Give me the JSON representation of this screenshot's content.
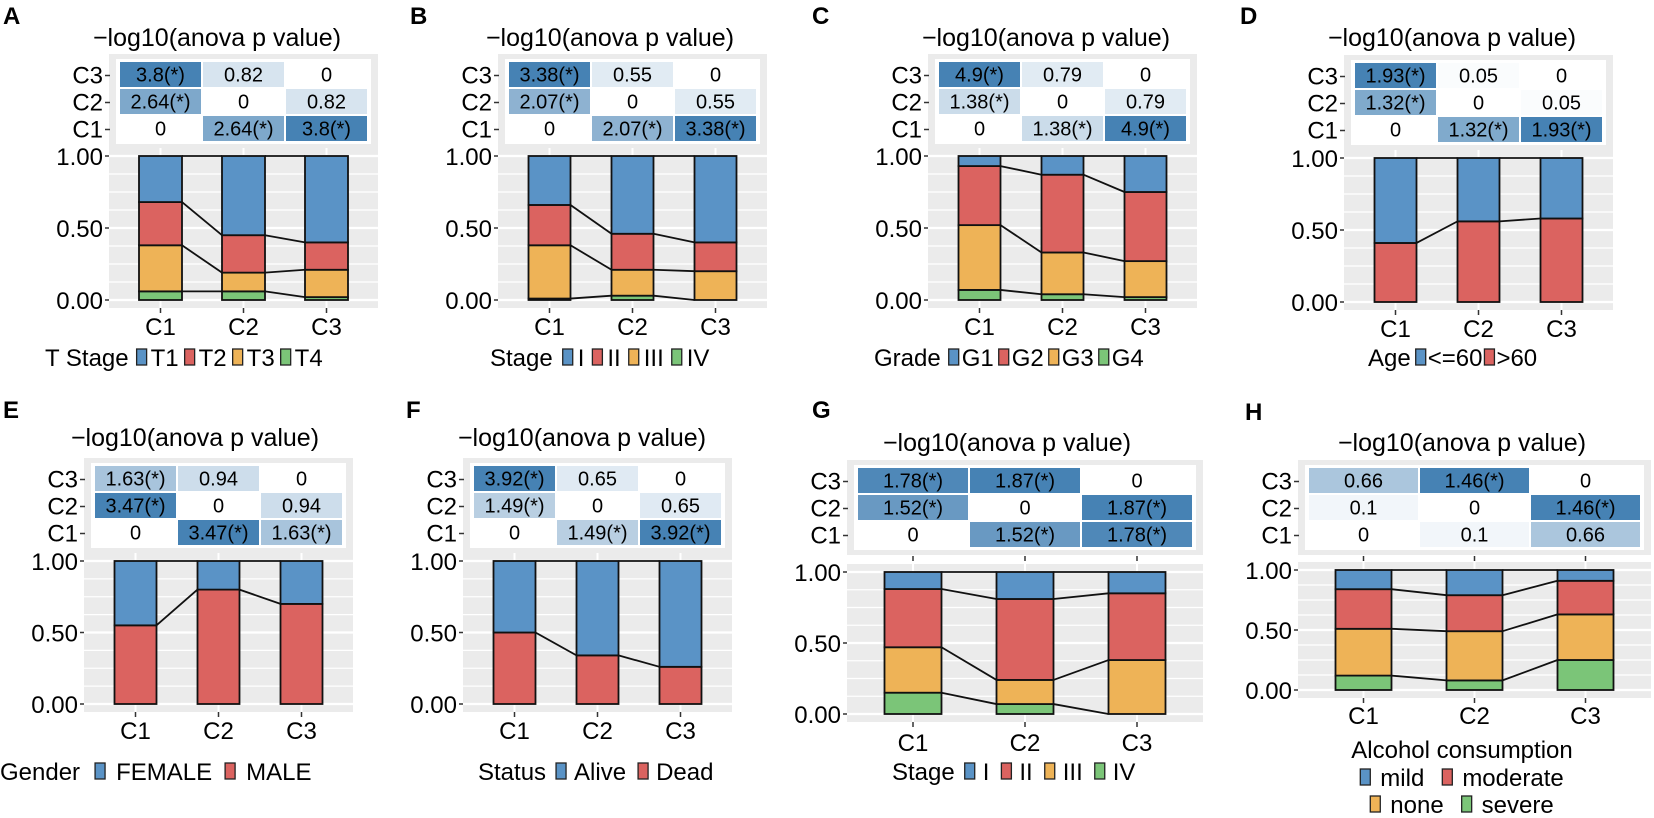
{
  "colors": {
    "heat_low": "#ffffff",
    "heat_high": "#4682b4",
    "panel_bg": "#ebebeb",
    "blue": "#5a93c6",
    "red": "#db6360",
    "orange": "#eeb357",
    "green": "#7bc578"
  },
  "chart_data": [
    {
      "panel": "A",
      "type": "bar",
      "stacked": true,
      "title": "−log10(anova p value)",
      "categories": [
        "C1",
        "C2",
        "C3"
      ],
      "yticks": [
        "0.00",
        "0.50",
        "1.00"
      ],
      "ylim": [
        0,
        1
      ],
      "legend_title": "T Stage",
      "series": [
        {
          "name": "T1",
          "color": "#5a93c6",
          "values": [
            0.32,
            0.55,
            0.6
          ]
        },
        {
          "name": "T2",
          "color": "#db6360",
          "values": [
            0.3,
            0.26,
            0.19
          ]
        },
        {
          "name": "T3",
          "color": "#eeb357",
          "values": [
            0.32,
            0.13,
            0.19
          ]
        },
        {
          "name": "T4",
          "color": "#7bc578",
          "values": [
            0.06,
            0.06,
            0.02
          ]
        }
      ],
      "heatmap": {
        "rows": [
          "C3",
          "C2",
          "C1"
        ],
        "cols": [
          "C1",
          "C2",
          "C3"
        ],
        "cells": [
          [
            "3.8(*)",
            "0.82",
            "0"
          ],
          [
            "2.64(*)",
            "0",
            "0.82"
          ],
          [
            "0",
            "2.64(*)",
            "3.8(*)"
          ]
        ]
      }
    },
    {
      "panel": "B",
      "type": "bar",
      "stacked": true,
      "title": "−log10(anova p value)",
      "categories": [
        "C1",
        "C2",
        "C3"
      ],
      "yticks": [
        "0.00",
        "0.50",
        "1.00"
      ],
      "ylim": [
        0,
        1
      ],
      "legend_title": "Stage",
      "series": [
        {
          "name": "I",
          "color": "#5a93c6",
          "values": [
            0.34,
            0.54,
            0.6
          ]
        },
        {
          "name": "II",
          "color": "#db6360",
          "values": [
            0.28,
            0.25,
            0.2
          ]
        },
        {
          "name": "III",
          "color": "#eeb357",
          "values": [
            0.37,
            0.18,
            0.2
          ]
        },
        {
          "name": "IV",
          "color": "#7bc578",
          "values": [
            0.01,
            0.03,
            0.0
          ]
        }
      ],
      "heatmap": {
        "rows": [
          "C3",
          "C2",
          "C1"
        ],
        "cols": [
          "C1",
          "C2",
          "C3"
        ],
        "cells": [
          [
            "3.38(*)",
            "0.55",
            "0"
          ],
          [
            "2.07(*)",
            "0",
            "0.55"
          ],
          [
            "0",
            "2.07(*)",
            "3.38(*)"
          ]
        ]
      }
    },
    {
      "panel": "C",
      "type": "bar",
      "stacked": true,
      "title": "−log10(anova p value)",
      "categories": [
        "C1",
        "C2",
        "C3"
      ],
      "yticks": [
        "0.00",
        "0.50",
        "1.00"
      ],
      "ylim": [
        0,
        1
      ],
      "legend_title": "Grade",
      "series": [
        {
          "name": "G1",
          "color": "#5a93c6",
          "values": [
            0.07,
            0.13,
            0.25
          ]
        },
        {
          "name": "G2",
          "color": "#db6360",
          "values": [
            0.41,
            0.54,
            0.48
          ]
        },
        {
          "name": "G3",
          "color": "#eeb357",
          "values": [
            0.45,
            0.29,
            0.25
          ]
        },
        {
          "name": "G4",
          "color": "#7bc578",
          "values": [
            0.07,
            0.04,
            0.02
          ]
        }
      ],
      "heatmap": {
        "rows": [
          "C3",
          "C2",
          "C1"
        ],
        "cols": [
          "C1",
          "C2",
          "C3"
        ],
        "cells": [
          [
            "4.9(*)",
            "0.79",
            "0"
          ],
          [
            "1.38(*)",
            "0",
            "0.79"
          ],
          [
            "0",
            "1.38(*)",
            "4.9(*)"
          ]
        ]
      }
    },
    {
      "panel": "D",
      "type": "bar",
      "stacked": true,
      "title": "−log10(anova p value)",
      "categories": [
        "C1",
        "C2",
        "C3"
      ],
      "yticks": [
        "0.00",
        "0.50",
        "1.00"
      ],
      "ylim": [
        0,
        1
      ],
      "legend_title": "Age",
      "series": [
        {
          "name": "<=60",
          "color": "#5a93c6",
          "values": [
            0.59,
            0.44,
            0.42
          ]
        },
        {
          "name": ">60",
          "color": "#db6360",
          "values": [
            0.41,
            0.56,
            0.58
          ]
        }
      ],
      "heatmap": {
        "rows": [
          "C3",
          "C2",
          "C1"
        ],
        "cols": [
          "C1",
          "C2",
          "C3"
        ],
        "cells": [
          [
            "1.93(*)",
            "0.05",
            "0"
          ],
          [
            "1.32(*)",
            "0",
            "0.05"
          ],
          [
            "0",
            "1.32(*)",
            "1.93(*)"
          ]
        ]
      }
    },
    {
      "panel": "E",
      "type": "bar",
      "stacked": true,
      "title": "−log10(anova p value)",
      "categories": [
        "C1",
        "C2",
        "C3"
      ],
      "yticks": [
        "0.00",
        "0.50",
        "1.00"
      ],
      "ylim": [
        0,
        1
      ],
      "legend_title": "Gender",
      "series": [
        {
          "name": "FEMALE",
          "color": "#5a93c6",
          "values": [
            0.45,
            0.2,
            0.3
          ]
        },
        {
          "name": "MALE",
          "color": "#db6360",
          "values": [
            0.55,
            0.8,
            0.7
          ]
        }
      ],
      "heatmap": {
        "rows": [
          "C3",
          "C2",
          "C1"
        ],
        "cols": [
          "C1",
          "C2",
          "C3"
        ],
        "cells": [
          [
            "1.63(*)",
            "0.94",
            "0"
          ],
          [
            "3.47(*)",
            "0",
            "0.94"
          ],
          [
            "0",
            "3.47(*)",
            "1.63(*)"
          ]
        ]
      }
    },
    {
      "panel": "F",
      "type": "bar",
      "stacked": true,
      "title": "−log10(anova p value)",
      "categories": [
        "C1",
        "C2",
        "C3"
      ],
      "yticks": [
        "0.00",
        "0.50",
        "1.00"
      ],
      "ylim": [
        0,
        1
      ],
      "legend_title": "Status",
      "series": [
        {
          "name": "Alive",
          "color": "#5a93c6",
          "values": [
            0.5,
            0.66,
            0.74
          ]
        },
        {
          "name": "Dead",
          "color": "#db6360",
          "values": [
            0.5,
            0.34,
            0.26
          ]
        }
      ],
      "heatmap": {
        "rows": [
          "C3",
          "C2",
          "C1"
        ],
        "cols": [
          "C1",
          "C2",
          "C3"
        ],
        "cells": [
          [
            "3.92(*)",
            "0.65",
            "0"
          ],
          [
            "1.49(*)",
            "0",
            "0.65"
          ],
          [
            "0",
            "1.49(*)",
            "3.92(*)"
          ]
        ]
      }
    },
    {
      "panel": "G",
      "type": "bar",
      "stacked": true,
      "title": "−log10(anova p value)",
      "categories": [
        "C1",
        "C2",
        "C3"
      ],
      "yticks": [
        "0.00",
        "0.50",
        "1.00"
      ],
      "ylim": [
        0,
        1
      ],
      "legend_title": "Stage",
      "series": [
        {
          "name": "I",
          "color": "#5a93c6",
          "values": [
            0.12,
            0.19,
            0.15
          ]
        },
        {
          "name": "II",
          "color": "#db6360",
          "values": [
            0.41,
            0.57,
            0.47
          ]
        },
        {
          "name": "III",
          "color": "#eeb357",
          "values": [
            0.32,
            0.17,
            0.38
          ]
        },
        {
          "name": "IV",
          "color": "#7bc578",
          "values": [
            0.15,
            0.07,
            0.0
          ]
        }
      ],
      "heatmap": {
        "rows": [
          "C3",
          "C2",
          "C1"
        ],
        "cols": [
          "C1",
          "C2",
          "C3"
        ],
        "cells": [
          [
            "1.78(*)",
            "1.87(*)",
            "0"
          ],
          [
            "1.52(*)",
            "0",
            "1.87(*)"
          ],
          [
            "0",
            "1.52(*)",
            "1.78(*)"
          ]
        ]
      }
    },
    {
      "panel": "H",
      "type": "bar",
      "stacked": true,
      "title": "−log10(anova p value)",
      "categories": [
        "C1",
        "C2",
        "C3"
      ],
      "yticks": [
        "0.00",
        "0.50",
        "1.00"
      ],
      "ylim": [
        0,
        1
      ],
      "legend_title": "Alcohol consumption",
      "series": [
        {
          "name": "mild",
          "color": "#5a93c6",
          "values": [
            0.16,
            0.21,
            0.09
          ]
        },
        {
          "name": "moderate",
          "color": "#db6360",
          "values": [
            0.33,
            0.3,
            0.28
          ]
        },
        {
          "name": "none",
          "color": "#eeb357",
          "values": [
            0.39,
            0.41,
            0.38
          ]
        },
        {
          "name": "severe",
          "color": "#7bc578",
          "values": [
            0.12,
            0.08,
            0.25
          ]
        }
      ],
      "heatmap": {
        "rows": [
          "C3",
          "C2",
          "C1"
        ],
        "cols": [
          "C1",
          "C2",
          "C3"
        ],
        "cells": [
          [
            "0.66",
            "1.46(*)",
            "0"
          ],
          [
            "0.1",
            "0",
            "1.46(*)"
          ],
          [
            "0",
            "0.1",
            "0.66"
          ]
        ]
      }
    }
  ]
}
